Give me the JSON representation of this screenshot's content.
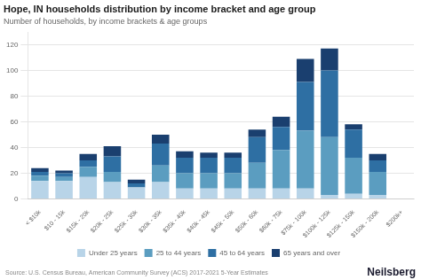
{
  "chart_data": {
    "type": "bar",
    "title": "Hope, IN households distribution by income bracket and age group",
    "subtitle": "Number of households, by income brackets & age groups",
    "annotations": [
      "Source: U.S. Census Bureau, American Community Survey (ACS) 2017-2021 5-Year Estimates",
      "Neilsberg"
    ],
    "categories": [
      "< $10k",
      "$10 - 15k",
      "$15k - 20k",
      "$20k - 25k",
      "$25k - 30k",
      "$30k - 35k",
      "$35k - 40k",
      "$40k - 45k",
      "$45k - 50k",
      "$50k - 60k",
      "$60k - 75k",
      "$75k - 100k",
      "$100k - 125k",
      "$125k - 150k",
      "$150k - 200k",
      "$200k+"
    ],
    "series": [
      {
        "name": "Under 25 years",
        "color": "#b8d4e8",
        "values": [
          14,
          14,
          17,
          13,
          9,
          13,
          8,
          8,
          8,
          8,
          8,
          8,
          3,
          4,
          3,
          0
        ]
      },
      {
        "name": "25 to 44 years",
        "color": "#5b9dc0",
        "values": [
          4,
          3,
          8,
          8,
          0,
          13,
          12,
          12,
          12,
          20,
          30,
          45,
          45,
          28,
          18,
          0
        ]
      },
      {
        "name": "45 to 64 years",
        "color": "#2e6fa3",
        "values": [
          3,
          3,
          5,
          12,
          3,
          17,
          12,
          12,
          12,
          20,
          18,
          38,
          52,
          22,
          9,
          0
        ]
      },
      {
        "name": "65 years and over",
        "color": "#1a3f6f",
        "values": [
          3,
          2,
          5,
          8,
          3,
          7,
          5,
          4,
          4,
          6,
          8,
          18,
          17,
          4,
          5,
          0
        ]
      }
    ],
    "stacked": true,
    "ylim": [
      0,
      130
    ],
    "yticks": [
      0,
      20,
      40,
      60,
      80,
      100,
      120
    ],
    "grid": true,
    "legend": "bottom"
  }
}
